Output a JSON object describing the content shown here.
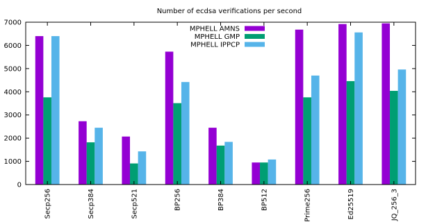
{
  "chart_data": {
    "type": "bar",
    "title": "Number of ecdsa verifications per second",
    "xlabel": "",
    "ylabel": "",
    "ylim": [
      0,
      7000
    ],
    "yticks": [
      0,
      1000,
      2000,
      3000,
      4000,
      5000,
      6000,
      7000
    ],
    "grid": false,
    "legend_position": "top-center",
    "categories": [
      "Secp256",
      "Secp384",
      "Secp521",
      "BP256",
      "BP384",
      "BP512",
      "Prime256",
      "Ed25519",
      "JQ_256_3"
    ],
    "series": [
      {
        "name": "MPHELL AMNS",
        "color": "#9400d3",
        "values": [
          6400,
          2730,
          2070,
          5730,
          2450,
          950,
          6680,
          6920,
          6950
        ]
      },
      {
        "name": "MPHELL GMP",
        "color": "#009e73",
        "values": [
          3760,
          1820,
          910,
          3510,
          1680,
          950,
          3760,
          4460,
          4040
        ]
      },
      {
        "name": "MPHELL IPPCP",
        "color": "#56b4e9",
        "values": [
          6400,
          2450,
          1430,
          4420,
          1840,
          1080,
          4700,
          6560,
          4960
        ]
      }
    ]
  }
}
